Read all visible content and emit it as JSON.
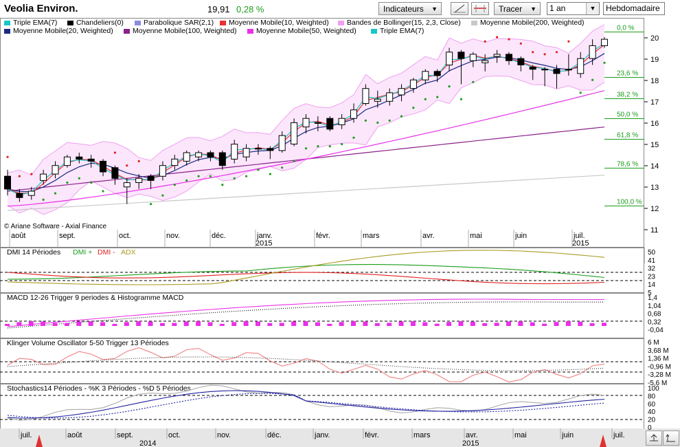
{
  "header": {
    "title": "Veolia Environ.",
    "price": "19,91",
    "change": "0,28 %",
    "indicators_label": "Indicateurs",
    "draw_label": "Tracer",
    "period_value": "1 an",
    "interval_value": "Hebdomadaire"
  },
  "legend": [
    {
      "label": "Triple EMA(7)",
      "color": "#19c6c6"
    },
    {
      "label": "Chandeliers(0)",
      "color": "#000000"
    },
    {
      "label": "Parabolique SAR(2,1)",
      "color": "#8c8cdc"
    },
    {
      "label": "Moyenne Mobile(10, Weighted)",
      "color": "#e83030"
    },
    {
      "label": "Bandes de Bollinger(15, 2,3, Close)",
      "color": "#f0a0f0"
    },
    {
      "label": "Moyenne Mobile(200, Weighted)",
      "color": "#c8c8c8"
    },
    {
      "label": "Moyenne Mobile(20, Weighted)",
      "color": "#1a2a80"
    },
    {
      "label": "Moyenne Mobile(100, Weighted)",
      "color": "#8a208a"
    },
    {
      "label": "Moyenne Mobile(50, Weighted)",
      "color": "#e830e8"
    },
    {
      "label": "Triple EMA(7)",
      "color": "#19c6c6"
    }
  ],
  "copyright": "© Ariane Software - Axial Finance",
  "fibonacci": [
    "0,0 %",
    "23,6 %",
    "38,2 %",
    "50,0 %",
    "61,8 %",
    "78,6 %",
    "100,0 %"
  ],
  "main_months": [
    "août",
    "sept.",
    "oct.",
    "nov.",
    "déc.",
    "janv.",
    "févr.",
    "mars",
    "avr.",
    "mai",
    "juin",
    "juil."
  ],
  "main_years": [
    "2015",
    "2015"
  ],
  "main_yticks": [
    "20",
    "19",
    "18",
    "17",
    "16",
    "15",
    "14",
    "13",
    "12",
    "11"
  ],
  "panels": {
    "dmi": {
      "title": "DMI 14 Périodes",
      "plus": "DMI +",
      "minus": "DMI -",
      "adx": "ADX",
      "ticks": [
        "50",
        "41",
        "32",
        "23",
        "14",
        "5"
      ]
    },
    "macd": {
      "title": "MACD 12-26   Trigger 9 periodes & Histogramme MACD",
      "ticks": [
        "1,4",
        "1,04",
        "0,68",
        "0,32",
        "-0,04"
      ]
    },
    "klinger": {
      "title": "Klinger Volume Oscillator 5-50   Trigger 13 Périodes",
      "ticks": [
        "6 M",
        "3,68 M",
        "1,36 M",
        "-0,96 M",
        "-3,28 M",
        "-5,6 M"
      ]
    },
    "stoch": {
      "title": "Stochastics14 Périodes  -  %K 3 Périodes  -  %D 5 Périodes",
      "ticks": [
        "100",
        "80",
        "60",
        "40",
        "20",
        "0"
      ]
    }
  },
  "bottom_axis": {
    "months": [
      "juil.",
      "août",
      "sept.",
      "oct.",
      "nov.",
      "déc.",
      "janv.",
      "févr.",
      "mars",
      "avr.",
      "mai",
      "juin",
      "juil."
    ],
    "years": [
      "2014",
      "2015"
    ]
  },
  "chart_data": {
    "type": "candlestick",
    "title": "Veolia Environ.",
    "ylim": [
      11,
      20.3
    ],
    "x": [
      "2014-07-28",
      "2014-08-04",
      "2014-08-11",
      "2014-08-18",
      "2014-08-25",
      "2014-09-01",
      "2014-09-08",
      "2014-09-15",
      "2014-09-22",
      "2014-09-29",
      "2014-10-06",
      "2014-10-13",
      "2014-10-20",
      "2014-10-27",
      "2014-11-03",
      "2014-11-10",
      "2014-11-17",
      "2014-11-24",
      "2014-12-01",
      "2014-12-08",
      "2014-12-15",
      "2014-12-22",
      "2014-12-29",
      "2015-01-05",
      "2015-01-12",
      "2015-01-19",
      "2015-01-26",
      "2015-02-02",
      "2015-02-09",
      "2015-02-16",
      "2015-02-23",
      "2015-03-02",
      "2015-03-09",
      "2015-03-16",
      "2015-03-23",
      "2015-03-30",
      "2015-04-06",
      "2015-04-13",
      "2015-04-20",
      "2015-04-27",
      "2015-05-04",
      "2015-05-11",
      "2015-05-18",
      "2015-05-25",
      "2015-06-01",
      "2015-06-08",
      "2015-06-15",
      "2015-06-22",
      "2015-06-29",
      "2015-07-06",
      "2015-07-13"
    ],
    "open": [
      13.5,
      12.7,
      12.6,
      13.3,
      13.6,
      14.0,
      14.4,
      14.3,
      14.2,
      13.9,
      13.0,
      13.2,
      13.5,
      13.5,
      14.0,
      14.2,
      14.4,
      14.6,
      14.6,
      14.3,
      14.4,
      14.8,
      14.8,
      14.7,
      15.0,
      15.8,
      16.0,
      16.2,
      15.9,
      16.2,
      16.9,
      17.0,
      17.0,
      17.3,
      17.6,
      18.0,
      18.4,
      18.7,
      19.3,
      18.9,
      18.8,
      19.1,
      19.2,
      19.0,
      18.6,
      18.5,
      18.5,
      18.5,
      18.3,
      19.0,
      19.6
    ],
    "close": [
      12.9,
      12.5,
      12.8,
      13.6,
      14.0,
      14.4,
      14.3,
      14.2,
      13.7,
      13.4,
      13.2,
      13.4,
      13.3,
      14.0,
      14.3,
      14.6,
      14.6,
      14.4,
      14.0,
      15.0,
      14.8,
      14.8,
      14.7,
      15.4,
      16.0,
      16.2,
      16.0,
      15.7,
      16.2,
      16.6,
      17.6,
      17.1,
      17.4,
      17.6,
      18.0,
      18.4,
      18.2,
      19.3,
      19.0,
      19.2,
      18.9,
      19.2,
      18.9,
      18.7,
      18.5,
      18.5,
      18.3,
      18.5,
      19.0,
      19.6,
      19.9
    ],
    "high": [
      13.8,
      12.9,
      13.0,
      13.8,
      14.2,
      14.5,
      14.6,
      14.5,
      14.3,
      14.0,
      13.4,
      13.6,
      13.6,
      14.2,
      14.5,
      14.7,
      14.7,
      14.7,
      14.7,
      15.2,
      15.0,
      15.0,
      14.9,
      15.6,
      16.2,
      16.4,
      16.3,
      16.3,
      16.4,
      16.9,
      17.8,
      17.5,
      17.6,
      17.8,
      18.1,
      18.5,
      18.5,
      19.5,
      19.4,
      19.3,
      19.2,
      19.4,
      19.3,
      19.1,
      18.7,
      18.6,
      18.7,
      19.2,
      19.3,
      19.9,
      20.0
    ],
    "low": [
      12.6,
      12.3,
      12.4,
      13.1,
      13.4,
      13.9,
      14.1,
      13.9,
      13.5,
      13.1,
      12.2,
      12.9,
      12.9,
      13.3,
      13.8,
      14.0,
      14.2,
      14.2,
      13.8,
      14.1,
      14.2,
      14.5,
      14.3,
      14.6,
      14.9,
      15.5,
      15.6,
      15.6,
      15.7,
      16.0,
      16.8,
      16.7,
      16.8,
      17.0,
      17.4,
      17.8,
      17.9,
      18.4,
      17.8,
      18.6,
      18.4,
      18.8,
      18.7,
      18.4,
      18.0,
      17.7,
      17.6,
      18.2,
      18.1,
      18.7,
      19.5
    ],
    "indicators": [
      "Triple EMA(7)",
      "Chandeliers(0)",
      "Parabolique SAR(2,1)",
      "Moyenne Mobile(10, Weighted)",
      "Bandes de Bollinger(15, 2,3, Close)",
      "Moyenne Mobile(200, Weighted)",
      "Moyenne Mobile(20, Weighted)",
      "Moyenne Mobile(100, Weighted)",
      "Moyenne Mobile(50, Weighted)"
    ],
    "fibonacci_levels_pct": [
      0,
      23.6,
      38.2,
      50.0,
      61.8,
      78.6,
      100.0
    ],
    "grid": false
  }
}
